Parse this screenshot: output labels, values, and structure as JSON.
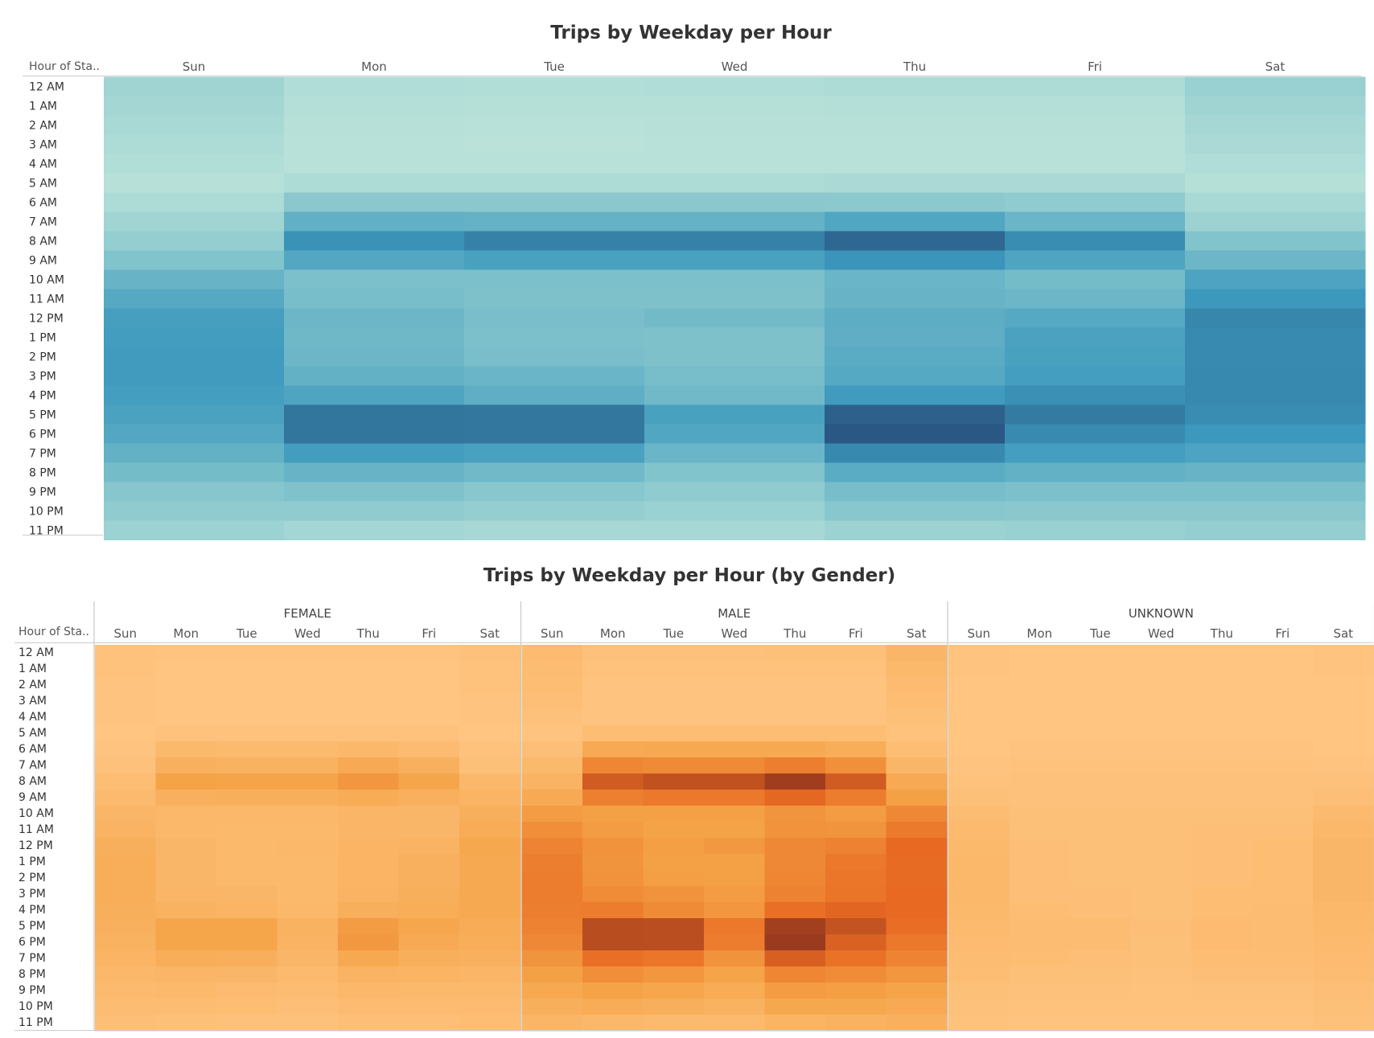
{
  "chart_data": [
    {
      "type": "heatmap",
      "title": "Trips by Weekday per Hour",
      "row_header": "Hour of Sta..",
      "columns": [
        "Sun",
        "Mon",
        "Tue",
        "Wed",
        "Thu",
        "Fri",
        "Sat"
      ],
      "rows": [
        "12 AM",
        "1 AM",
        "2 AM",
        "3 AM",
        "4 AM",
        "5 AM",
        "6 AM",
        "7 AM",
        "8 AM",
        "9 AM",
        "10 AM",
        "11 AM",
        "12 PM",
        "1 PM",
        "2 PM",
        "3 PM",
        "4 PM",
        "5 PM",
        "6 PM",
        "7 PM",
        "8 PM",
        "9 PM",
        "10 PM",
        "11 PM"
      ],
      "color_low": "#bde4da",
      "color_high": "#2a5783",
      "values": [
        [
          18,
          8,
          7,
          8,
          10,
          10,
          22
        ],
        [
          15,
          6,
          5,
          5,
          6,
          6,
          18
        ],
        [
          12,
          4,
          3,
          4,
          4,
          4,
          14
        ],
        [
          10,
          3,
          2,
          3,
          3,
          3,
          11
        ],
        [
          7,
          3,
          3,
          3,
          3,
          3,
          8
        ],
        [
          4,
          10,
          10,
          10,
          11,
          11,
          5
        ],
        [
          10,
          31,
          31,
          31,
          30,
          27,
          12
        ],
        [
          17,
          50,
          48,
          48,
          57,
          46,
          20
        ],
        [
          25,
          70,
          79,
          79,
          92,
          73,
          35
        ],
        [
          35,
          56,
          61,
          61,
          69,
          58,
          45
        ],
        [
          47,
          38,
          38,
          38,
          46,
          41,
          59
        ],
        [
          55,
          40,
          37,
          37,
          47,
          45,
          67
        ],
        [
          62,
          45,
          39,
          42,
          52,
          55,
          76
        ],
        [
          64,
          44,
          38,
          37,
          51,
          60,
          74
        ],
        [
          65,
          45,
          39,
          37,
          53,
          61,
          74
        ],
        [
          65,
          49,
          46,
          40,
          55,
          63,
          75
        ],
        [
          63,
          58,
          51,
          43,
          65,
          71,
          75
        ],
        [
          60,
          85,
          84,
          61,
          95,
          82,
          73
        ],
        [
          56,
          85,
          84,
          57,
          100,
          74,
          67
        ],
        [
          49,
          64,
          61,
          46,
          75,
          63,
          59
        ],
        [
          41,
          47,
          43,
          35,
          53,
          49,
          47
        ],
        [
          33,
          36,
          32,
          28,
          40,
          38,
          38
        ],
        [
          27,
          28,
          24,
          21,
          32,
          31,
          31
        ],
        [
          20,
          16,
          13,
          13,
          20,
          22,
          24
        ]
      ]
    },
    {
      "type": "heatmap",
      "title": "Trips by Weekday per Hour (by Gender)",
      "row_header": "Hour of Sta..",
      "groups": [
        "FEMALE",
        "MALE",
        "UNKNOWN"
      ],
      "columns": [
        "Sun",
        "Mon",
        "Tue",
        "Wed",
        "Thu",
        "Fri",
        "Sat"
      ],
      "rows": [
        "12 AM",
        "1 AM",
        "2 AM",
        "3 AM",
        "4 AM",
        "5 AM",
        "6 AM",
        "7 AM",
        "8 AM",
        "9 AM",
        "10 AM",
        "11 AM",
        "12 PM",
        "1 PM",
        "2 PM",
        "3 PM",
        "4 PM",
        "5 PM",
        "6 PM",
        "7 PM",
        "8 PM",
        "9 PM",
        "10 PM",
        "11 PM"
      ],
      "color_low": "#ffc683",
      "color_high": "#9a3a1f",
      "values": {
        "FEMALE": [
          [
            3,
            2,
            2,
            2,
            2,
            2,
            4
          ],
          [
            3,
            1,
            1,
            1,
            1,
            1,
            3
          ],
          [
            2,
            1,
            1,
            1,
            1,
            1,
            3
          ],
          [
            2,
            1,
            1,
            1,
            1,
            1,
            2
          ],
          [
            2,
            1,
            1,
            1,
            1,
            1,
            2
          ],
          [
            1,
            3,
            3,
            3,
            3,
            3,
            1
          ],
          [
            2,
            11,
            10,
            10,
            12,
            9,
            3
          ],
          [
            4,
            18,
            17,
            17,
            23,
            18,
            5
          ],
          [
            7,
            29,
            28,
            28,
            35,
            27,
            12
          ],
          [
            10,
            18,
            19,
            19,
            22,
            18,
            15
          ],
          [
            14,
            12,
            12,
            12,
            14,
            13,
            19
          ],
          [
            16,
            12,
            11,
            11,
            14,
            13,
            22
          ],
          [
            19,
            13,
            11,
            12,
            15,
            16,
            25
          ],
          [
            20,
            13,
            11,
            11,
            15,
            18,
            24
          ],
          [
            20,
            13,
            11,
            11,
            15,
            18,
            24
          ],
          [
            20,
            14,
            13,
            11,
            16,
            19,
            24
          ],
          [
            19,
            17,
            15,
            12,
            19,
            21,
            24
          ],
          [
            18,
            27,
            27,
            17,
            32,
            26,
            22
          ],
          [
            17,
            27,
            27,
            16,
            34,
            23,
            20
          ],
          [
            15,
            20,
            19,
            13,
            24,
            19,
            18
          ],
          [
            12,
            14,
            13,
            10,
            16,
            15,
            14
          ],
          [
            10,
            11,
            9,
            8,
            12,
            11,
            11
          ],
          [
            8,
            8,
            7,
            6,
            9,
            9,
            9
          ],
          [
            6,
            5,
            4,
            4,
            6,
            6,
            7
          ]
        ],
        "MALE": [
          [
            9,
            4,
            4,
            4,
            5,
            5,
            13
          ],
          [
            8,
            3,
            3,
            3,
            3,
            3,
            11
          ],
          [
            7,
            2,
            2,
            2,
            2,
            2,
            9
          ],
          [
            6,
            2,
            2,
            2,
            2,
            2,
            7
          ],
          [
            4,
            2,
            2,
            2,
            2,
            2,
            5
          ],
          [
            2,
            7,
            7,
            7,
            7,
            7,
            3
          ],
          [
            6,
            23,
            24,
            24,
            24,
            20,
            7
          ],
          [
            11,
            43,
            41,
            41,
            47,
            38,
            13
          ],
          [
            16,
            65,
            71,
            71,
            83,
            65,
            23
          ],
          [
            23,
            46,
            50,
            50,
            58,
            48,
            30
          ],
          [
            32,
            30,
            30,
            30,
            36,
            32,
            42
          ],
          [
            39,
            32,
            29,
            29,
            37,
            36,
            49
          ],
          [
            44,
            37,
            31,
            34,
            42,
            45,
            57
          ],
          [
            47,
            36,
            30,
            30,
            42,
            50,
            56
          ],
          [
            48,
            37,
            31,
            30,
            43,
            51,
            56
          ],
          [
            48,
            40,
            37,
            32,
            45,
            52,
            57
          ],
          [
            47,
            48,
            41,
            35,
            54,
            59,
            57
          ],
          [
            45,
            74,
            73,
            50,
            82,
            70,
            55
          ],
          [
            42,
            74,
            73,
            48,
            85,
            62,
            50
          ],
          [
            36,
            54,
            51,
            37,
            63,
            53,
            44
          ],
          [
            30,
            39,
            35,
            28,
            43,
            40,
            35
          ],
          [
            24,
            29,
            26,
            22,
            32,
            31,
            28
          ],
          [
            19,
            22,
            19,
            17,
            25,
            25,
            23
          ],
          [
            14,
            12,
            10,
            10,
            15,
            17,
            18
          ]
        ],
        "UNKNOWN": [
          [
            2,
            1,
            1,
            1,
            1,
            1,
            2
          ],
          [
            2,
            1,
            1,
            1,
            1,
            1,
            2
          ],
          [
            1,
            1,
            1,
            1,
            1,
            1,
            1
          ],
          [
            1,
            1,
            1,
            1,
            1,
            1,
            1
          ],
          [
            1,
            1,
            1,
            1,
            1,
            1,
            1
          ],
          [
            1,
            1,
            1,
            1,
            1,
            1,
            1
          ],
          [
            1,
            2,
            2,
            2,
            2,
            2,
            1
          ],
          [
            2,
            3,
            3,
            3,
            3,
            3,
            2
          ],
          [
            3,
            4,
            4,
            4,
            4,
            4,
            4
          ],
          [
            5,
            4,
            4,
            4,
            4,
            4,
            6
          ],
          [
            8,
            5,
            5,
            5,
            5,
            5,
            10
          ],
          [
            10,
            5,
            5,
            5,
            6,
            6,
            12
          ],
          [
            11,
            6,
            5,
            5,
            6,
            7,
            13
          ],
          [
            12,
            6,
            5,
            5,
            6,
            7,
            13
          ],
          [
            12,
            6,
            5,
            5,
            6,
            7,
            13
          ],
          [
            12,
            6,
            6,
            5,
            7,
            7,
            13
          ],
          [
            11,
            7,
            6,
            5,
            7,
            8,
            12
          ],
          [
            10,
            8,
            8,
            6,
            9,
            8,
            11
          ],
          [
            9,
            8,
            8,
            5,
            9,
            8,
            10
          ],
          [
            8,
            7,
            6,
            5,
            7,
            7,
            9
          ],
          [
            7,
            5,
            5,
            4,
            6,
            6,
            8
          ],
          [
            5,
            4,
            4,
            3,
            4,
            4,
            6
          ],
          [
            4,
            3,
            3,
            3,
            3,
            3,
            5
          ],
          [
            3,
            2,
            2,
            2,
            2,
            2,
            4
          ]
        ]
      }
    }
  ]
}
